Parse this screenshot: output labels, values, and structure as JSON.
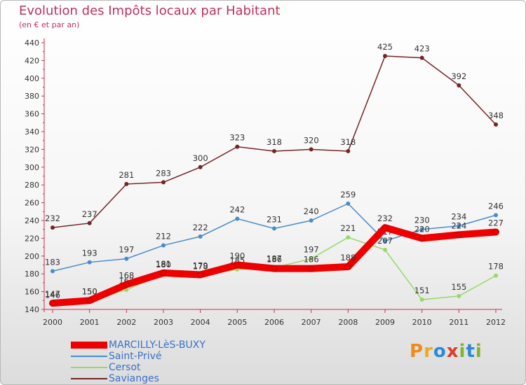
{
  "header": {
    "title": "Evolution des Impôts locaux par Habitant",
    "subtitle": "(en € et par an)"
  },
  "logo": {
    "letters": [
      {
        "char": "P",
        "color": "#f08a1c"
      },
      {
        "char": "r",
        "color": "#f0a91c"
      },
      {
        "char": "o",
        "color": "#2a8ad8"
      },
      {
        "char": "x",
        "color": "#e03a2a"
      },
      {
        "char": "i",
        "color": "#7ab82a"
      },
      {
        "char": "t",
        "color": "#2a8ad8"
      },
      {
        "char": "i",
        "color": "#7ab82a"
      }
    ]
  },
  "chart_data": {
    "type": "line",
    "title": "Evolution des Impôts locaux par Habitant",
    "subtitle": "(en € et par an)",
    "x": [
      "2000",
      "2001",
      "2002",
      "2003",
      "2004",
      "2005",
      "2006",
      "2007",
      "2008",
      "2009",
      "2010",
      "2011",
      "2012"
    ],
    "ylim": [
      140,
      440
    ],
    "yticks": [
      140,
      160,
      180,
      200,
      220,
      240,
      260,
      280,
      300,
      320,
      340,
      360,
      380,
      400,
      420,
      440
    ],
    "grid": false,
    "legend_position": "bottom-left",
    "series": [
      {
        "name": "Savianges",
        "color": "#722626",
        "values": [
          232,
          237,
          281,
          283,
          300,
          323,
          318,
          320,
          318,
          425,
          423,
          392,
          348
        ]
      },
      {
        "name": "Saint-Privé",
        "color": "#4a8cc8",
        "values": [
          183,
          193,
          197,
          212,
          222,
          242,
          231,
          240,
          259,
          217,
          230,
          234,
          246
        ]
      },
      {
        "name": "Cersot",
        "color": "#96d86a",
        "values": [
          146,
          150,
          162,
          180,
          178,
          185,
          187,
          197,
          221,
          207,
          151,
          155,
          178
        ]
      },
      {
        "name": "MARCILLY-LèS-BUXY",
        "color": "#ee0000",
        "values": [
          147,
          150,
          168,
          181,
          179,
          190,
          186,
          186,
          188,
          232,
          220,
          224,
          227
        ]
      }
    ],
    "data_labels": {
      "Savianges": [
        "232",
        "237",
        "281",
        "283",
        "300",
        "323",
        "318",
        "320",
        "318",
        "425",
        "423",
        "392",
        "348"
      ],
      "Saint-Privé": [
        "183",
        "193",
        "197",
        "212",
        "222",
        "242",
        "231",
        "240",
        "259",
        "217",
        "230",
        "234",
        "246"
      ],
      "Cersot": [
        "146",
        "150",
        "162",
        "180",
        "178",
        "185",
        "187",
        "197",
        "221",
        "207",
        "151",
        "155",
        "178"
      ],
      "MARCILLY-LèS-BUXY": [
        "147",
        "150",
        "168",
        "181",
        "179",
        "190",
        "186",
        "186",
        "188",
        "232",
        "220",
        "224",
        "227"
      ]
    }
  },
  "legend": [
    {
      "name": "MARCILLY-LèS-BUXY",
      "color": "#ee0000",
      "text_color": "#3a70c8"
    },
    {
      "name": "Saint-Privé",
      "color": "#4a8cc8",
      "text_color": "#3a70c8"
    },
    {
      "name": "Cersot",
      "color": "#96d86a",
      "text_color": "#3a70c8"
    },
    {
      "name": "Savianges",
      "color": "#722626",
      "text_color": "#3a70c8"
    }
  ]
}
